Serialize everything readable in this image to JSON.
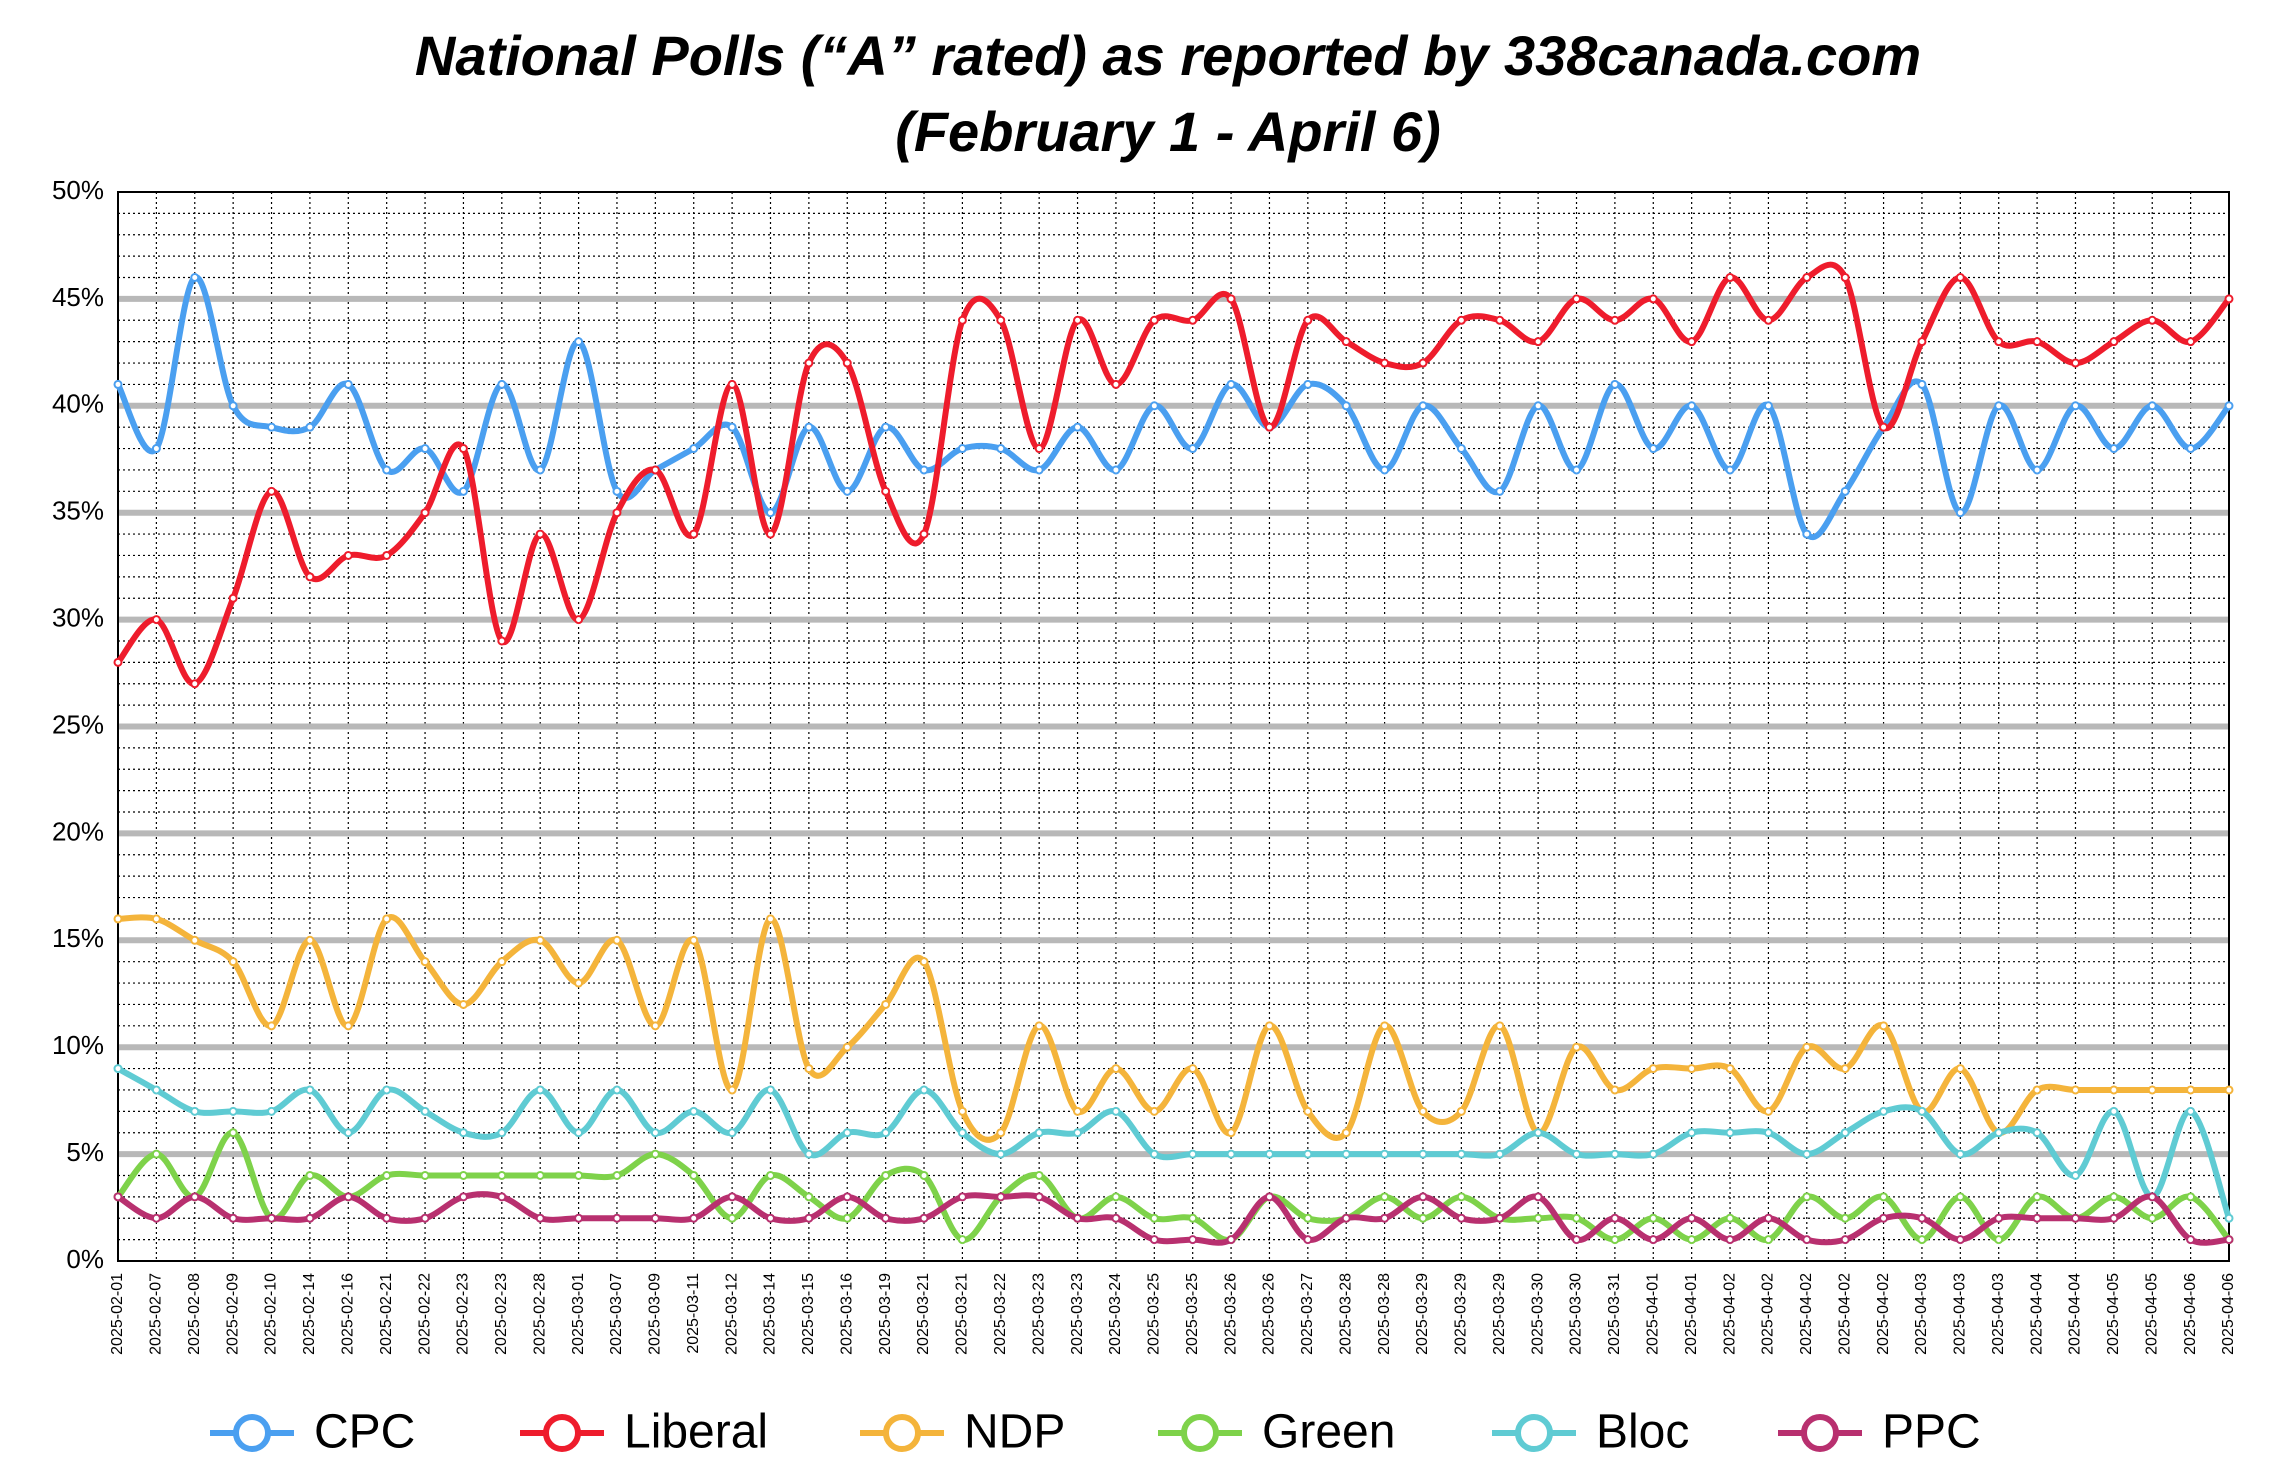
{
  "chart_data": {
    "type": "line",
    "title": "National Polls (“A” rated) as reported by 338canada.com",
    "subtitle": "(February 1 - April 6)",
    "categories": [
      "2025-02-01",
      "2025-02-07",
      "2025-02-08",
      "2025-02-09",
      "2025-02-10",
      "2025-02-14",
      "2025-02-16",
      "2025-02-21",
      "2025-02-22",
      "2025-02-23",
      "2025-02-23",
      "2025-02-28",
      "2025-03-01",
      "2025-03-07",
      "2025-03-09",
      "2025-03-11",
      "2025-03-12",
      "2025-03-14",
      "2025-03-15",
      "2025-03-16",
      "2025-03-19",
      "2025-03-21",
      "2025-03-21",
      "2025-03-22",
      "2025-03-23",
      "2025-03-23",
      "2025-03-24",
      "2025-03-25",
      "2025-03-25",
      "2025-03-26",
      "2025-03-26",
      "2025-03-27",
      "2025-03-28",
      "2025-03-28",
      "2025-03-29",
      "2025-03-29",
      "2025-03-29",
      "2025-03-30",
      "2025-03-30",
      "2025-03-31",
      "2025-04-01",
      "2025-04-01",
      "2025-04-02",
      "2025-04-02",
      "2025-04-02",
      "2025-04-02",
      "2025-04-02",
      "2025-04-03",
      "2025-04-03",
      "2025-04-03",
      "2025-04-04",
      "2025-04-04",
      "2025-04-05",
      "2025-04-05",
      "2025-04-06",
      "2025-04-06"
    ],
    "series": [
      {
        "name": "CPC",
        "color": "#4a9ff0",
        "values": [
          41,
          38,
          46,
          40,
          39,
          39,
          41,
          37,
          38,
          36,
          41,
          37,
          43,
          36,
          37,
          38,
          39,
          35,
          39,
          36,
          39,
          37,
          38,
          38,
          37,
          39,
          37,
          40,
          38,
          41,
          39,
          41,
          40,
          37,
          40,
          38,
          36,
          40,
          37,
          41,
          38,
          40,
          37,
          40,
          34,
          36,
          39,
          41,
          35,
          40,
          37,
          40,
          38,
          40,
          38,
          40
        ]
      },
      {
        "name": "Liberal",
        "color": "#ee1c2c",
        "values": [
          28,
          30,
          27,
          31,
          36,
          32,
          33,
          33,
          35,
          38,
          29,
          34,
          30,
          35,
          37,
          34,
          41,
          34,
          42,
          42,
          36,
          34,
          44,
          44,
          38,
          44,
          41,
          44,
          44,
          45,
          39,
          44,
          43,
          42,
          42,
          44,
          44,
          43,
          45,
          44,
          45,
          43,
          46,
          44,
          46,
          46,
          39,
          43,
          46,
          43,
          43,
          42,
          43,
          44,
          43,
          45
        ]
      },
      {
        "name": "NDP",
        "color": "#f4b43b",
        "values": [
          16,
          16,
          15,
          14,
          11,
          15,
          11,
          16,
          14,
          12,
          14,
          15,
          13,
          15,
          11,
          15,
          8,
          16,
          9,
          10,
          12,
          14,
          7,
          6,
          11,
          7,
          9,
          7,
          9,
          6,
          11,
          7,
          6,
          11,
          7,
          7,
          11,
          6,
          10,
          8,
          9,
          9,
          9,
          7,
          10,
          9,
          11,
          7,
          9,
          6,
          8,
          8,
          8,
          8,
          8,
          8
        ]
      },
      {
        "name": "Green",
        "color": "#7ed24a",
        "values": [
          3,
          5,
          3,
          6,
          2,
          4,
          3,
          4,
          4,
          4,
          4,
          4,
          4,
          4,
          5,
          4,
          2,
          4,
          3,
          2,
          4,
          4,
          1,
          3,
          4,
          2,
          3,
          2,
          2,
          1,
          3,
          2,
          2,
          3,
          2,
          3,
          2,
          2,
          2,
          1,
          2,
          1,
          2,
          1,
          3,
          2,
          3,
          1,
          3,
          1,
          3,
          2,
          3,
          2,
          3,
          1
        ]
      },
      {
        "name": "Bloc",
        "color": "#5fcbd3",
        "values": [
          9,
          8,
          7,
          7,
          7,
          8,
          6,
          8,
          7,
          6,
          6,
          8,
          6,
          8,
          6,
          7,
          6,
          8,
          5,
          6,
          6,
          8,
          6,
          5,
          6,
          6,
          7,
          5,
          5,
          5,
          5,
          5,
          5,
          5,
          5,
          5,
          5,
          6,
          5,
          5,
          5,
          6,
          6,
          6,
          5,
          6,
          7,
          7,
          5,
          6,
          6,
          4,
          7,
          3,
          7,
          2
        ]
      },
      {
        "name": "PPC",
        "color": "#b8306f",
        "values": [
          3,
          2,
          3,
          2,
          2,
          2,
          3,
          2,
          2,
          3,
          3,
          2,
          2,
          2,
          2,
          2,
          3,
          2,
          2,
          3,
          2,
          2,
          3,
          3,
          3,
          2,
          2,
          1,
          1,
          1,
          3,
          1,
          2,
          2,
          3,
          2,
          2,
          3,
          1,
          2,
          1,
          2,
          1,
          2,
          1,
          1,
          2,
          2,
          1,
          2,
          2,
          2,
          2,
          3,
          1,
          1
        ]
      }
    ],
    "ylim": [
      0,
      50
    ],
    "yticks": [
      {
        "value": 0,
        "label": "0%"
      },
      {
        "value": 5,
        "label": "5%"
      },
      {
        "value": 10,
        "label": "10%"
      },
      {
        "value": 15,
        "label": "15%"
      },
      {
        "value": 20,
        "label": "20%"
      },
      {
        "value": 25,
        "label": "25%"
      },
      {
        "value": 30,
        "label": "30%"
      },
      {
        "value": 35,
        "label": "35%"
      },
      {
        "value": 40,
        "label": "40%"
      },
      {
        "value": 45,
        "label": "45%"
      },
      {
        "value": 50,
        "label": "50%"
      }
    ],
    "minor_yticks": [
      1,
      2,
      3,
      4,
      6,
      7,
      8,
      9,
      11,
      12,
      13,
      14,
      16,
      17,
      18,
      19,
      21,
      22,
      23,
      24,
      26,
      27,
      28,
      29,
      31,
      32,
      33,
      34,
      36,
      37,
      38,
      39,
      41,
      42,
      43,
      44,
      46,
      47,
      48,
      49
    ],
    "grid": true,
    "legend": "bottom"
  }
}
